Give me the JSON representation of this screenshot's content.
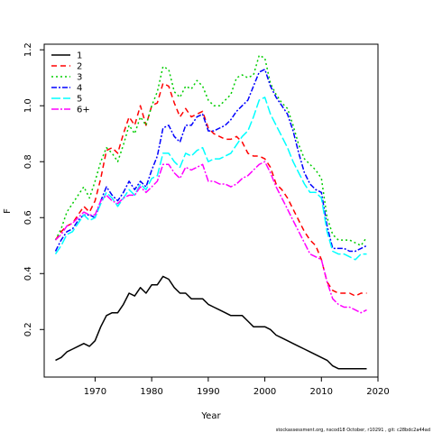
{
  "chart_data": {
    "type": "line",
    "title": "",
    "xlabel": "Year",
    "ylabel": "F",
    "xlim": [
      1961,
      2020
    ],
    "ylim": [
      0.03,
      1.22
    ],
    "xticks": [
      1970,
      1980,
      1990,
      2000,
      2010,
      2020
    ],
    "yticks": [
      0.2,
      0.4,
      0.6,
      0.8,
      1.0,
      1.2
    ],
    "xtick_labels": [
      "1970",
      "1980",
      "1990",
      "2000",
      "2010",
      "2020"
    ],
    "ytick_labels": [
      "0.2",
      "0.4",
      "0.6",
      "0.8",
      "1.0",
      "1.2"
    ],
    "grid": false,
    "legend": "top-left",
    "footer": "stockassessment.org, nscod18 October, r10291 , git: c28bdc2a44ad",
    "x": [
      1963,
      1964,
      1965,
      1966,
      1967,
      1968,
      1969,
      1970,
      1971,
      1972,
      1973,
      1974,
      1975,
      1976,
      1977,
      1978,
      1979,
      1980,
      1981,
      1982,
      1983,
      1984,
      1985,
      1986,
      1987,
      1988,
      1989,
      1990,
      1991,
      1992,
      1993,
      1994,
      1995,
      1996,
      1997,
      1998,
      1999,
      2000,
      2001,
      2002,
      2003,
      2004,
      2005,
      2006,
      2007,
      2008,
      2009,
      2010,
      2011,
      2012,
      2013,
      2014,
      2015,
      2016,
      2017,
      2018
    ],
    "series": [
      {
        "name": "1",
        "color": "#000000",
        "dash": "",
        "values": [
          0.09,
          0.1,
          0.12,
          0.13,
          0.14,
          0.15,
          0.14,
          0.16,
          0.21,
          0.25,
          0.26,
          0.26,
          0.29,
          0.33,
          0.32,
          0.35,
          0.33,
          0.36,
          0.36,
          0.39,
          0.38,
          0.35,
          0.33,
          0.33,
          0.31,
          0.31,
          0.31,
          0.29,
          0.28,
          0.27,
          0.26,
          0.25,
          0.25,
          0.25,
          0.23,
          0.21,
          0.21,
          0.21,
          0.2,
          0.18,
          0.17,
          0.16,
          0.15,
          0.14,
          0.13,
          0.12,
          0.11,
          0.1,
          0.09,
          0.07,
          0.06,
          0.06,
          0.06,
          0.06,
          0.06,
          0.06
        ]
      },
      {
        "name": "2",
        "color": "#ff0000",
        "dash": "6,4",
        "values": [
          0.52,
          0.55,
          0.57,
          0.58,
          0.61,
          0.64,
          0.62,
          0.66,
          0.74,
          0.84,
          0.85,
          0.83,
          0.9,
          0.96,
          0.93,
          1.0,
          0.93,
          1.0,
          1.01,
          1.08,
          1.07,
          1.01,
          0.96,
          0.99,
          0.96,
          0.97,
          0.98,
          0.92,
          0.9,
          0.89,
          0.88,
          0.88,
          0.89,
          0.87,
          0.83,
          0.82,
          0.82,
          0.81,
          0.78,
          0.72,
          0.7,
          0.67,
          0.63,
          0.59,
          0.55,
          0.52,
          0.5,
          0.45,
          0.37,
          0.34,
          0.33,
          0.33,
          0.33,
          0.32,
          0.33,
          0.33
        ]
      },
      {
        "name": "3",
        "color": "#00cd00",
        "dash": "2,3",
        "values": [
          0.52,
          0.56,
          0.62,
          0.65,
          0.68,
          0.71,
          0.67,
          0.73,
          0.8,
          0.85,
          0.83,
          0.8,
          0.86,
          0.93,
          0.9,
          0.96,
          0.93,
          1.0,
          1.05,
          1.14,
          1.13,
          1.05,
          1.03,
          1.07,
          1.06,
          1.09,
          1.07,
          1.02,
          1.0,
          1.0,
          1.02,
          1.04,
          1.1,
          1.11,
          1.1,
          1.11,
          1.18,
          1.17,
          1.08,
          1.04,
          1.01,
          0.99,
          0.93,
          0.86,
          0.81,
          0.79,
          0.77,
          0.74,
          0.6,
          0.54,
          0.52,
          0.52,
          0.52,
          0.51,
          0.5,
          0.53
        ]
      },
      {
        "name": "4",
        "color": "#0000ff",
        "dash": "6,2,2,2",
        "values": [
          0.48,
          0.52,
          0.55,
          0.56,
          0.59,
          0.61,
          0.61,
          0.6,
          0.66,
          0.71,
          0.68,
          0.66,
          0.69,
          0.73,
          0.7,
          0.73,
          0.71,
          0.77,
          0.82,
          0.92,
          0.93,
          0.89,
          0.87,
          0.93,
          0.93,
          0.96,
          0.97,
          0.91,
          0.91,
          0.92,
          0.93,
          0.95,
          0.98,
          1.0,
          1.02,
          1.07,
          1.12,
          1.13,
          1.07,
          1.03,
          1.0,
          0.97,
          0.91,
          0.83,
          0.76,
          0.72,
          0.7,
          0.69,
          0.57,
          0.49,
          0.49,
          0.49,
          0.48,
          0.48,
          0.49,
          0.5
        ]
      },
      {
        "name": "5",
        "color": "#00ffff",
        "dash": "10,3",
        "values": [
          0.47,
          0.5,
          0.54,
          0.55,
          0.58,
          0.61,
          0.59,
          0.6,
          0.65,
          0.69,
          0.67,
          0.64,
          0.67,
          0.7,
          0.68,
          0.72,
          0.7,
          0.74,
          0.75,
          0.83,
          0.83,
          0.8,
          0.78,
          0.83,
          0.82,
          0.84,
          0.85,
          0.8,
          0.81,
          0.81,
          0.82,
          0.83,
          0.86,
          0.89,
          0.91,
          0.96,
          1.02,
          1.03,
          0.97,
          0.93,
          0.89,
          0.85,
          0.8,
          0.76,
          0.72,
          0.69,
          0.69,
          0.67,
          0.55,
          0.48,
          0.47,
          0.47,
          0.46,
          0.45,
          0.47,
          0.47
        ]
      },
      {
        "name": "6+",
        "color": "#ff00ff",
        "dash": "8,2,2,2",
        "values": [
          0.52,
          0.54,
          0.57,
          0.58,
          0.6,
          0.62,
          0.61,
          0.61,
          0.66,
          0.68,
          0.66,
          0.65,
          0.67,
          0.68,
          0.68,
          0.71,
          0.69,
          0.71,
          0.73,
          0.79,
          0.79,
          0.76,
          0.74,
          0.78,
          0.77,
          0.78,
          0.79,
          0.73,
          0.73,
          0.72,
          0.72,
          0.71,
          0.72,
          0.74,
          0.75,
          0.77,
          0.79,
          0.8,
          0.76,
          0.71,
          0.67,
          0.63,
          0.59,
          0.55,
          0.51,
          0.47,
          0.46,
          0.45,
          0.37,
          0.31,
          0.29,
          0.28,
          0.28,
          0.27,
          0.26,
          0.27
        ]
      }
    ]
  }
}
